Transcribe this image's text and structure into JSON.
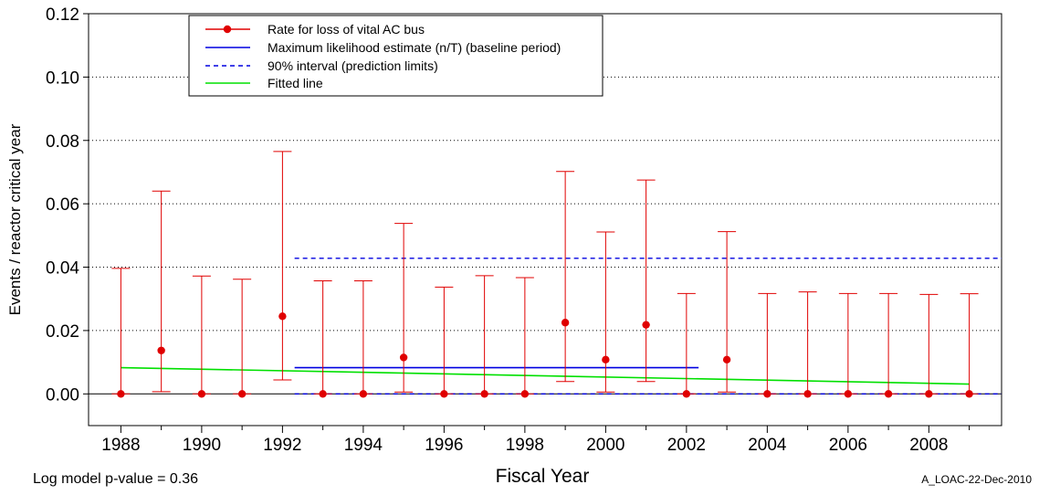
{
  "chart_data": {
    "type": "line",
    "xlabel": "Fiscal Year",
    "ylabel": "Events / reactor critical year",
    "xlim": [
      1987.2,
      2009.8
    ],
    "ylim": [
      -0.01,
      0.12
    ],
    "yticks": [
      "0.00",
      "0.02",
      "0.04",
      "0.06",
      "0.08",
      "0.10",
      "0.12"
    ],
    "ytick_values": [
      0,
      0.02,
      0.04,
      0.06,
      0.08,
      0.1,
      0.12
    ],
    "xticks": [
      "1988",
      "1990",
      "1992",
      "1994",
      "1996",
      "1998",
      "2000",
      "2002",
      "2004",
      "2006",
      "2008"
    ],
    "xtick_values": [
      1988,
      1990,
      1992,
      1994,
      1996,
      1998,
      2000,
      2002,
      2004,
      2006,
      2008
    ],
    "grid": "horizontal dotted",
    "legend_placement": "top-left",
    "series": [
      {
        "name": "Rate for loss of vital AC bus",
        "color": "#e00000",
        "style": "points-with-error-bars",
        "x": [
          1988,
          1989,
          1990,
          1991,
          1992,
          1993,
          1994,
          1995,
          1996,
          1997,
          1998,
          1999,
          2000,
          2001,
          2002,
          2003,
          2004,
          2005,
          2006,
          2007,
          2008,
          2009
        ],
        "y": [
          0.0,
          0.0137,
          0.0,
          0.0,
          0.0245,
          0.0,
          0.0,
          0.0115,
          0.0,
          0.0,
          0.0,
          0.0225,
          0.0108,
          0.0218,
          0.0,
          0.0108,
          0.0,
          0.0,
          0.0,
          0.0,
          0.0,
          0.0
        ],
        "lower": [
          0.0,
          0.0007,
          0.0,
          0.0,
          0.0044,
          0.0,
          0.0,
          0.0006,
          0.0,
          0.0,
          0.0,
          0.0039,
          0.0006,
          0.0039,
          0.0,
          0.0006,
          0.0,
          0.0,
          0.0,
          0.0,
          0.0,
          0.0
        ],
        "upper": [
          0.0396,
          0.064,
          0.0372,
          0.0362,
          0.0765,
          0.0357,
          0.0357,
          0.0538,
          0.0337,
          0.0373,
          0.0367,
          0.0702,
          0.0511,
          0.0675,
          0.0317,
          0.0512,
          0.0317,
          0.0322,
          0.0317,
          0.0317,
          0.0314,
          0.0316
        ]
      },
      {
        "name": "Maximum likelihood estimate (n/T) (baseline period)",
        "color": "#0000e0",
        "style": "solid",
        "x": [
          1992.3,
          2002.3
        ],
        "y": [
          0.0083,
          0.0083
        ]
      },
      {
        "name": "90% interval (prediction limits)",
        "color": "#0000e0",
        "style": "dashed",
        "lines": [
          {
            "x": [
              1992.3,
              2009.8
            ],
            "y": [
              0.0428,
              0.0428
            ]
          },
          {
            "x": [
              1992.3,
              2009.8
            ],
            "y": [
              0.0,
              0.0
            ]
          }
        ]
      },
      {
        "name": "Fitted line",
        "color": "#00e000",
        "style": "solid",
        "x": [
          1988,
          2009
        ],
        "y": [
          0.0083,
          0.0031
        ]
      }
    ]
  },
  "footer": {
    "pvalue": "Log model p-value = 0.36",
    "stamp": "A_LOAC-22-Dec-2010"
  }
}
